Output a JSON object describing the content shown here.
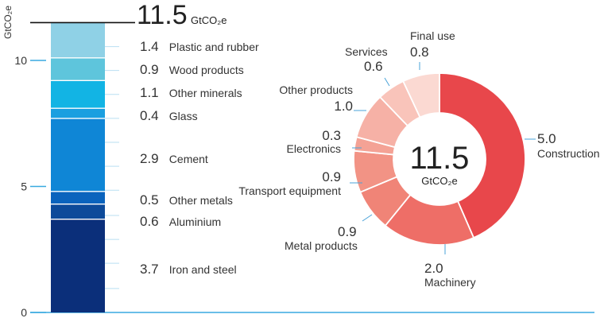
{
  "chart_data": [
    {
      "type": "bar",
      "stacked": true,
      "ylabel": "GtCO₂e",
      "ylim": [
        0,
        11.5
      ],
      "yticks": [
        0,
        5,
        10
      ],
      "total": {
        "value": "11.5",
        "unit": "GtCO₂e"
      },
      "series": [
        {
          "name": "Iron and steel",
          "value": 3.7,
          "label": "3.7",
          "color": "#0b2f7a"
        },
        {
          "name": "Aluminium",
          "value": 0.6,
          "label": "0.6",
          "color": "#0d4a9a"
        },
        {
          "name": "Other metals",
          "value": 0.5,
          "label": "0.5",
          "color": "#0a63bd"
        },
        {
          "name": "Cement",
          "value": 2.9,
          "label": "2.9",
          "color": "#0f86d6"
        },
        {
          "name": "Glass",
          "value": 0.4,
          "label": "0.4",
          "color": "#1a9fe0"
        },
        {
          "name": "Other minerals",
          "value": 1.1,
          "label": "1.1",
          "color": "#12b4e4"
        },
        {
          "name": "Wood products",
          "value": 0.9,
          "label": "0.9",
          "color": "#5ec5dc"
        },
        {
          "name": "Plastic and rubber",
          "value": 1.4,
          "label": "1.4",
          "color": "#8fd1e6"
        }
      ]
    },
    {
      "type": "pie",
      "donut": true,
      "center": {
        "value": "11.5",
        "unit": "GtCO₂e"
      },
      "slices": [
        {
          "name": "Construction",
          "value": 5.0,
          "label": "5.0",
          "color": "#e8474b"
        },
        {
          "name": "Machinery",
          "value": 2.0,
          "label": "2.0",
          "color": "#ee6e67"
        },
        {
          "name": "Metal products",
          "value": 0.9,
          "label": "0.9",
          "color": "#f08477"
        },
        {
          "name": "Transport equipment",
          "value": 0.9,
          "label": "0.9",
          "color": "#f29385"
        },
        {
          "name": "Electronics",
          "value": 0.3,
          "label": "0.3",
          "color": "#f4a295"
        },
        {
          "name": "Other products",
          "value": 1.0,
          "label": "1.0",
          "color": "#f6b1a6"
        },
        {
          "name": "Services",
          "value": 0.6,
          "label": "0.6",
          "color": "#f9c4ba"
        },
        {
          "name": "Final use",
          "value": 0.8,
          "label": "0.8",
          "color": "#fbd9d2"
        }
      ]
    }
  ]
}
